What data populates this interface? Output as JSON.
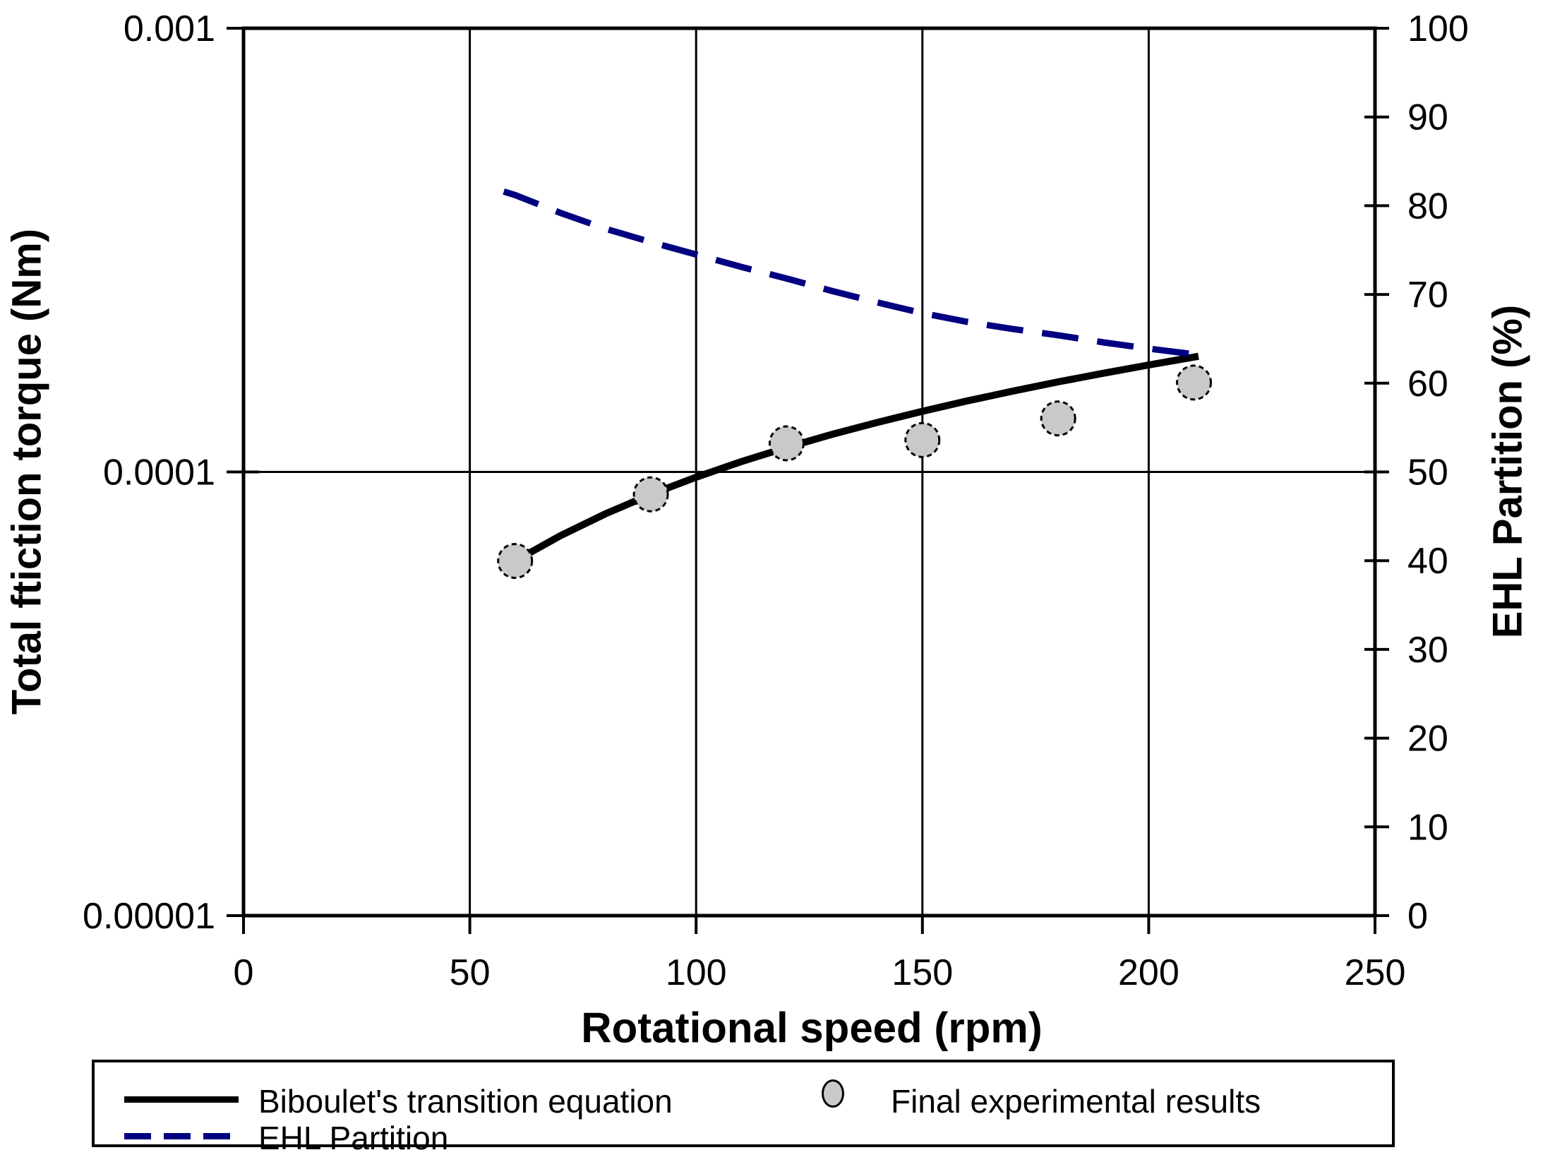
{
  "chart_data": {
    "type": "line",
    "title": "",
    "xlabel": "Rotational speed (rpm)",
    "ylabel_left": "Total ftiction torque (Nm)",
    "ylabel_right": "EHL Partition (%)",
    "background": "#ffffff",
    "axis_color": "#000000",
    "x_axis": {
      "min": 0,
      "max": 250,
      "ticks": [
        0,
        50,
        100,
        150,
        200,
        250
      ],
      "gridlines": [
        50,
        100,
        150,
        200
      ]
    },
    "y_left_axis": {
      "scale": "log",
      "min": 1e-05,
      "max": 0.001,
      "ticks": [
        {
          "value": 0.001,
          "label": "0.001"
        },
        {
          "value": 0.0001,
          "label": "0.0001"
        },
        {
          "value": 1e-05,
          "label": "0.00001"
        }
      ],
      "gridlines": [
        0.0001
      ]
    },
    "y_right_axis": {
      "min": 0,
      "max": 100,
      "ticks": [
        100,
        90,
        80,
        70,
        60,
        50,
        40,
        30,
        20,
        10,
        0
      ]
    },
    "series": [
      {
        "name": "Biboulet's transition equation",
        "type": "line",
        "axis": "left",
        "style": "solid",
        "color": "#000000",
        "width": 10,
        "points": [
          [
            60,
            6.3e-05
          ],
          [
            70,
            7.18e-05
          ],
          [
            80,
            8.05e-05
          ],
          [
            90,
            8.9e-05
          ],
          [
            100,
            9.73e-05
          ],
          [
            110,
            0.0001055
          ],
          [
            120,
            0.0001135
          ],
          [
            130,
            0.0001215
          ],
          [
            140,
            0.0001293
          ],
          [
            150,
            0.000137
          ],
          [
            160,
            0.0001446
          ],
          [
            170,
            0.0001521
          ],
          [
            180,
            0.0001596
          ],
          [
            190,
            0.0001669
          ],
          [
            200,
            0.0001742
          ],
          [
            211,
            0.0001822
          ]
        ]
      },
      {
        "name": "Final experimental results",
        "type": "scatter",
        "axis": "left",
        "marker": "circle",
        "marker_radius": 24,
        "fill": "#c9c9c9",
        "stroke": "#000000",
        "points": [
          [
            60,
            6.3e-05
          ],
          [
            90,
            8.9e-05
          ],
          [
            120,
            0.000116
          ],
          [
            150,
            0.000118
          ],
          [
            180,
            0.000132
          ],
          [
            210,
            0.000159
          ]
        ]
      },
      {
        "name": "EHL Partition",
        "type": "line",
        "axis": "right",
        "style": "dashed",
        "color": "#000080",
        "width": 9,
        "points": [
          [
            57.5,
            81.6
          ],
          [
            60,
            81.2
          ],
          [
            70,
            79.2
          ],
          [
            80,
            77.4
          ],
          [
            90,
            75.9
          ],
          [
            100,
            74.5
          ],
          [
            110,
            73.1
          ],
          [
            120,
            71.8
          ],
          [
            130,
            70.4
          ],
          [
            140,
            69.1
          ],
          [
            150,
            67.9
          ],
          [
            160,
            66.9
          ],
          [
            170,
            66.1
          ],
          [
            180,
            65.4
          ],
          [
            190,
            64.6
          ],
          [
            200,
            63.9
          ],
          [
            211,
            63.2
          ]
        ]
      }
    ],
    "legend": {
      "position": "bottom",
      "entries": [
        "Biboulet's transition equation",
        "Final experimental results",
        "EHL Partition"
      ]
    }
  }
}
